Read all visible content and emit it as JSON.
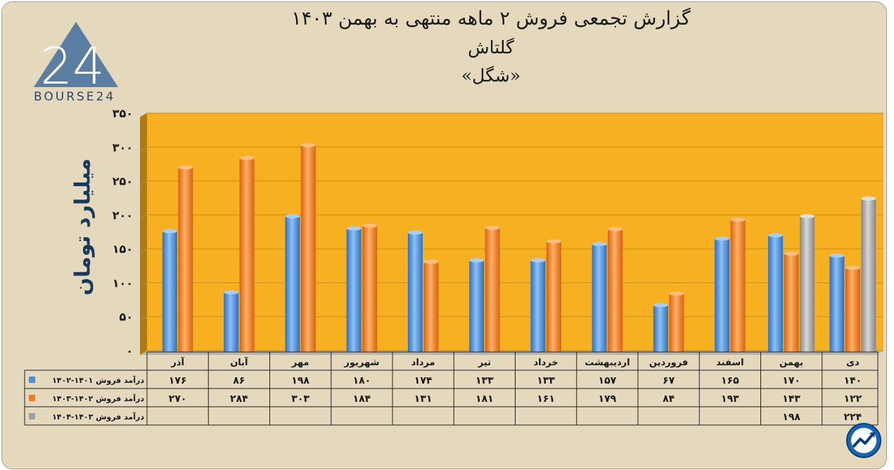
{
  "title_line1": "گزارش تجمعی فروش ۲ ماهه منتهی به بهمن ۱۴۰۳",
  "title_line2": "گلتاش",
  "title_line3": "«شگل»",
  "logo": {
    "text": "BOURSE24",
    "mark": "24"
  },
  "chart_data": {
    "type": "bar",
    "ylabel": "میلیارد تومان",
    "ylim": [
      0,
      350
    ],
    "yticks": [
      "۰",
      "۵۰",
      "۱۰۰",
      "۱۵۰",
      "۲۰۰",
      "۲۵۰",
      "۳۰۰",
      "۳۵۰"
    ],
    "grid": true,
    "categories": [
      "آذر",
      "آبان",
      "مهر",
      "شهریور",
      "مرداد",
      "تیر",
      "خرداد",
      "اردیبهشت",
      "فروردین",
      "اسفند",
      "بهمن",
      "دی"
    ],
    "series": [
      {
        "name": "درآمد فروش ۱۴۰۱-۱۴۰۲",
        "color": "#4a8de0",
        "values": [
          176,
          86,
          198,
          180,
          174,
          133,
          133,
          157,
          67,
          165,
          170,
          140
        ],
        "labels": [
          "۱۷۶",
          "۸۶",
          "۱۹۸",
          "۱۸۰",
          "۱۷۴",
          "۱۳۳",
          "۱۳۳",
          "۱۵۷",
          "۶۷",
          "۱۶۵",
          "۱۷۰",
          "۱۴۰"
        ]
      },
      {
        "name": "درآمد فروش ۱۴۰۲-۱۴۰۳",
        "color": "#f07f22",
        "values": [
          270,
          284,
          303,
          184,
          131,
          181,
          161,
          179,
          84,
          193,
          143,
          122
        ],
        "labels": [
          "۲۷۰",
          "۲۸۴",
          "۳۰۳",
          "۱۸۴",
          "۱۳۱",
          "۱۸۱",
          "۱۶۱",
          "۱۷۹",
          "۸۴",
          "۱۹۳",
          "۱۴۳",
          "۱۲۲"
        ]
      },
      {
        "name": "درآمد فروش ۱۴۰۳-۱۴۰۴",
        "color": "#a0a0a0",
        "values": [
          null,
          null,
          null,
          null,
          null,
          null,
          null,
          null,
          null,
          null,
          198,
          224
        ],
        "labels": [
          "",
          "",
          "",
          "",
          "",
          "",
          "",
          "",
          "",
          "",
          "۱۹۸",
          "۲۲۴"
        ]
      }
    ],
    "colors": {
      "plot_bg": "#f7b01f",
      "floor": "#b9b2a6",
      "wall_side": "#b07a12"
    }
  }
}
